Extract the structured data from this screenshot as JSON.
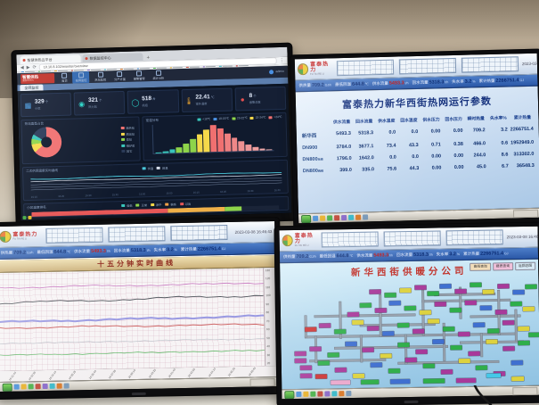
{
  "brand": {
    "logo_cn": "富泰热力",
    "logo_en": "FU TAI RE LI"
  },
  "scada": {
    "datetime": "2023-03-08 16:46:43",
    "status_items": [
      {
        "label": "供热量",
        "value": "709.2",
        "unit": "GJ/h",
        "color": "#0a2a72"
      },
      {
        "label": "最低回温",
        "value": "644.8",
        "unit": "℃",
        "color": "#0a2a72"
      },
      {
        "label": "供水流量",
        "value": "5493.3",
        "unit": "t/h",
        "color": "#c01818"
      },
      {
        "label": "回水流量",
        "value": "5318.3",
        "unit": "t/h",
        "color": "#0a2a72"
      },
      {
        "label": "失水率",
        "value": "3.2",
        "unit": "%",
        "color": "#0a2a72"
      },
      {
        "label": "累计热量",
        "value": "2266751.4",
        "unit": "GJ",
        "color": "#0a2a72"
      }
    ],
    "taskbar_icons": [
      "#4a90d8",
      "#e8b028",
      "#48b048",
      "#c04838",
      "#8868c8",
      "#38b8c8",
      "#d87828",
      "#7898b8"
    ]
  },
  "monitor_tr": {
    "title": "富泰热力新华西街热网运行参数",
    "table": {
      "headers": [
        "供水流量",
        "回水流量",
        "供水温度",
        "回水温度",
        "供水压力",
        "回水压力",
        "瞬时热量",
        "失水率%",
        "累计热量"
      ],
      "rows": [
        {
          "name": "新华西",
          "sub": "",
          "values": [
            "5493.3",
            "5318.3",
            "0.0",
            "0.0",
            "0.00",
            "0.00",
            "709.2",
            "3.2",
            "2266751.4"
          ]
        },
        {
          "name": "DN900",
          "sub": "",
          "values": [
            "3784.0",
            "3677.1",
            "73.4",
            "43.3",
            "0.71",
            "0.38",
            "466.0",
            "0.6",
            "1952949.0"
          ]
        },
        {
          "name": "DN800",
          "sub": "东线",
          "values": [
            "1796.0",
            "1642.0",
            "0.0",
            "0.0",
            "0.00",
            "0.00",
            "244.0",
            "8.6",
            "313302.0"
          ]
        },
        {
          "name": "DN800",
          "sub": "西线",
          "values": [
            "399.0",
            "335.0",
            "75.6",
            "44.3",
            "0.00",
            "0.00",
            "45.0",
            "6.7",
            "36548.3"
          ]
        }
      ]
    }
  },
  "monitor_bl": {
    "title": "十五分钟实时曲线",
    "y_ticks": [
      "130",
      "120",
      "110",
      "100",
      "90",
      "80",
      "70",
      "60",
      "50",
      "40",
      "30",
      "20"
    ],
    "x_ticks": [
      "16:31:40",
      "16:32:55",
      "16:34:10",
      "16:35:25",
      "16:36:40",
      "16:37:55",
      "16:39:10",
      "16:40:25",
      "16:41:40",
      "16:42:55",
      "16:44:10",
      "16:45:25",
      "16:46:40"
    ],
    "lines": [
      {
        "color": "#c878c0",
        "w": 0.8,
        "y": 15,
        "amp": 1.2,
        "trend": 0.5
      },
      {
        "color": "#50555c",
        "w": 0.9,
        "y": 31,
        "amp": 2.2,
        "trend": -3.5
      },
      {
        "color": "#9a9ae2",
        "w": 2.0,
        "y": 50,
        "amp": 1.0,
        "trend": -1.0
      },
      {
        "color": "#d06a6a",
        "w": 1.0,
        "y": 56,
        "amp": 1.4,
        "trend": 1.5
      },
      {
        "color": "#b8c0c8",
        "w": 0.6,
        "y": 72,
        "amp": 0.5,
        "trend": 0
      },
      {
        "color": "#58b860",
        "w": 0.7,
        "y": 84,
        "amp": 0.4,
        "trend": 0
      }
    ]
  },
  "monitor_br": {
    "title": "新华西街供暖分公司",
    "buttons": [
      {
        "label": "曲线查询",
        "bg": "#f2ddba"
      },
      {
        "label": "报表查询",
        "bg": "#f0c0da"
      },
      {
        "label": "返回总图",
        "bg": "#d6e8f4"
      }
    ],
    "palette": {
      "m": "#a8399a",
      "g": "#2fae4a",
      "y": "#ddd23e",
      "b": "#3f6fd0",
      "c": "#45c8e8",
      "r": "#cc3333",
      "p": "#eba8cc",
      "w": "#ececec"
    },
    "pipes_h": [
      [
        12,
        33,
        40
      ],
      [
        55,
        20,
        35
      ],
      [
        8,
        52,
        84
      ],
      [
        20,
        63,
        45
      ],
      [
        70,
        60,
        25
      ],
      [
        10,
        75,
        30
      ],
      [
        45,
        78,
        40
      ],
      [
        60,
        14,
        24
      ],
      [
        30,
        42,
        30
      ],
      [
        74,
        35,
        20
      ]
    ],
    "pipes_v": [
      [
        22,
        20,
        35
      ],
      [
        38,
        14,
        40
      ],
      [
        55,
        8,
        45
      ],
      [
        70,
        8,
        30
      ],
      [
        85,
        12,
        42
      ],
      [
        30,
        52,
        25
      ],
      [
        48,
        52,
        28
      ],
      [
        63,
        42,
        35
      ],
      [
        78,
        52,
        22
      ],
      [
        92,
        30,
        30
      ],
      [
        12,
        52,
        25
      ],
      [
        8,
        33,
        20
      ]
    ],
    "chips": [
      [
        52,
        6,
        "m"
      ],
      [
        57,
        12,
        "g"
      ],
      [
        62,
        5,
        "b"
      ],
      [
        68,
        10,
        "m"
      ],
      [
        74,
        4,
        "g"
      ],
      [
        79,
        11,
        "y"
      ],
      [
        85,
        6,
        "m"
      ],
      [
        91,
        12,
        "b"
      ],
      [
        96,
        7,
        "g"
      ],
      [
        34,
        9,
        "m"
      ],
      [
        40,
        13,
        "g"
      ],
      [
        46,
        8,
        "y"
      ],
      [
        30,
        22,
        "g"
      ],
      [
        36,
        27,
        "m"
      ],
      [
        42,
        20,
        "b"
      ],
      [
        48,
        25,
        "g"
      ],
      [
        54,
        29,
        "y"
      ],
      [
        60,
        22,
        "m"
      ],
      [
        66,
        28,
        "g"
      ],
      [
        72,
        21,
        "m"
      ],
      [
        78,
        26,
        "b"
      ],
      [
        84,
        30,
        "m"
      ],
      [
        90,
        23,
        "g"
      ],
      [
        95,
        28,
        "y"
      ],
      [
        25,
        30,
        "m"
      ],
      [
        8,
        44,
        "r"
      ],
      [
        14,
        40,
        "m"
      ],
      [
        20,
        46,
        "g"
      ],
      [
        27,
        38,
        "y"
      ],
      [
        33,
        44,
        "m"
      ],
      [
        39,
        49,
        "b"
      ],
      [
        45,
        41,
        "g"
      ],
      [
        51,
        47,
        "m"
      ],
      [
        57,
        38,
        "y"
      ],
      [
        63,
        45,
        "g"
      ],
      [
        69,
        50,
        "m"
      ],
      [
        75,
        42,
        "b"
      ],
      [
        81,
        48,
        "g"
      ],
      [
        87,
        40,
        "m"
      ],
      [
        93,
        46,
        "y"
      ],
      [
        97,
        52,
        "g"
      ],
      [
        10,
        62,
        "m"
      ],
      [
        17,
        68,
        "g"
      ],
      [
        24,
        58,
        "b"
      ],
      [
        31,
        64,
        "m"
      ],
      [
        38,
        70,
        "y"
      ],
      [
        45,
        60,
        "g"
      ],
      [
        52,
        66,
        "m"
      ],
      [
        59,
        57,
        "b"
      ],
      [
        66,
        63,
        "g"
      ],
      [
        73,
        69,
        "m"
      ],
      [
        80,
        58,
        "y"
      ],
      [
        87,
        65,
        "m"
      ],
      [
        93,
        60,
        "g"
      ],
      [
        4,
        66,
        "m"
      ],
      [
        4,
        73,
        "m"
      ],
      [
        6,
        80,
        "m"
      ],
      [
        6,
        87,
        "m"
      ],
      [
        12,
        88,
        "r"
      ],
      [
        13,
        76,
        "g"
      ],
      [
        20,
        82,
        "m"
      ],
      [
        27,
        88,
        "y"
      ],
      [
        34,
        78,
        "b"
      ],
      [
        41,
        84,
        "g"
      ],
      [
        48,
        74,
        "m"
      ],
      [
        55,
        80,
        "g"
      ],
      [
        62,
        86,
        "m"
      ],
      [
        69,
        76,
        "y"
      ],
      [
        76,
        82,
        "g"
      ],
      [
        83,
        88,
        "m"
      ],
      [
        90,
        78,
        "b"
      ],
      [
        18,
        94,
        "p",
        22
      ],
      [
        30,
        94,
        "g",
        20
      ],
      [
        42,
        94,
        "b",
        22
      ],
      [
        55,
        94,
        "g",
        24
      ],
      [
        68,
        94,
        "m",
        22
      ],
      [
        80,
        90,
        "c",
        16
      ],
      [
        90,
        93,
        "y",
        14
      ]
    ]
  },
  "monitor_tl": {
    "browser": {
      "tabs": [
        {
          "label": "智慧供热云平台",
          "active": true
        },
        {
          "label": "数据监控中心",
          "active": false
        }
      ],
      "url": "10.10.8.102/monitor/overview",
      "bookmarks": [
        "#4a90d8",
        "#48b048",
        "#e8b028",
        "#c04838",
        "#8868c8",
        "#38b8c8",
        "#d87828",
        "#4a90d8",
        "#48b048",
        "#e8b028",
        "#c04838",
        "#8868c8",
        "#38b8c8",
        "#c02020"
      ]
    },
    "app": {
      "logo_line1": "智慧供热",
      "logo_line2": "监控云平台",
      "nav": [
        "首页",
        "全网监控",
        "热站监控",
        "分户计量",
        "报警管理",
        "统计分析"
      ],
      "active_nav": 1,
      "user": "admin"
    },
    "subtab": "全网监控",
    "kpis": [
      {
        "icon": "building",
        "color": "#4aa0e8",
        "value": "329",
        "unit": "个",
        "label": "小区"
      },
      {
        "icon": "pin",
        "color": "#2ad4c8",
        "value": "321",
        "unit": "个",
        "label": "热力站"
      },
      {
        "icon": "ring",
        "color": "#2ad4c8",
        "value": "518",
        "unit": "台",
        "label": "机组"
      },
      {
        "icon": "thermo",
        "color": "#f0a830",
        "value": "22.41",
        "unit": "℃",
        "label": "室外温度"
      },
      {
        "icon": "alarm",
        "color": "#e85050",
        "value": "8",
        "unit": "个",
        "label": "报警总数"
      }
    ],
    "donut": {
      "title": "热站类型占比",
      "slices": [
        {
          "label": "换热站",
          "pct": 64,
          "color": "#f07070"
        },
        {
          "label": "隔压站",
          "pct": 9,
          "color": "#f5d94a"
        },
        {
          "label": "泵站",
          "pct": 6,
          "color": "#8ed44a"
        },
        {
          "label": "锅炉房",
          "pct": 5,
          "color": "#39c5bb"
        },
        {
          "label": "其它",
          "pct": 16,
          "color": "#2a3a58"
        }
      ]
    },
    "hist": {
      "title": "室温分布",
      "legend": [
        {
          "label": "<18℃",
          "color": "#39c5bb"
        },
        {
          "label": "18-20℃",
          "color": "#4a90e2"
        },
        {
          "label": "20-22℃",
          "color": "#8ed44a"
        },
        {
          "label": "22-24℃",
          "color": "#f5d94a"
        },
        {
          "label": ">24℃",
          "color": "#f07070"
        }
      ],
      "bars": [
        {
          "h": 4,
          "c": "#39c5bb"
        },
        {
          "h": 7,
          "c": "#39c5bb"
        },
        {
          "h": 12,
          "c": "#39c5bb"
        },
        {
          "h": 20,
          "c": "#8ed44a"
        },
        {
          "h": 32,
          "c": "#8ed44a"
        },
        {
          "h": 46,
          "c": "#8ed44a"
        },
        {
          "h": 62,
          "c": "#f5d94a"
        },
        {
          "h": 78,
          "c": "#f5d94a"
        },
        {
          "h": 95,
          "c": "#f07070"
        },
        {
          "h": 82,
          "c": "#f07070"
        },
        {
          "h": 64,
          "c": "#f08080"
        },
        {
          "h": 48,
          "c": "#f08888"
        },
        {
          "h": 34,
          "c": "#f09090"
        },
        {
          "h": 22,
          "c": "#f09898"
        },
        {
          "h": 13,
          "c": "#f0a0a0"
        },
        {
          "h": 7,
          "c": "#f0a8a8"
        },
        {
          "h": 4,
          "c": "#f0b0b0"
        }
      ]
    },
    "trend": {
      "title": "二次供回温度实时曲线",
      "legend": [
        {
          "label": "供温",
          "color": "#49c5d8"
        },
        {
          "label": "回温",
          "color": "#d8e0ec"
        }
      ],
      "lines": [
        {
          "color": "#49c5d8",
          "w": 0.9,
          "y": 26,
          "amp": 5,
          "trend": 0
        },
        {
          "color": "#d8e0ec",
          "w": 0.7,
          "y": 38,
          "amp": 2,
          "trend": 0
        },
        {
          "color": "#70809c",
          "w": 0.5,
          "y": 54,
          "amp": 0.8,
          "trend": 0
        },
        {
          "color": "#70809c",
          "w": 0.5,
          "y": 66,
          "amp": 0.8,
          "trend": 0
        },
        {
          "color": "#70809c",
          "w": 0.5,
          "y": 78,
          "amp": 0.8,
          "trend": 0
        }
      ],
      "x_ticks": [
        "15:10",
        "15:20",
        "15:30",
        "15:40",
        "15:50",
        "16:00",
        "16:10",
        "16:20",
        "16:30",
        "16:40"
      ]
    },
    "rank": {
      "title": "小区温度排名",
      "legend": [
        {
          "label": "偏低",
          "color": "#39c5bb"
        },
        {
          "label": "正常",
          "color": "#8ed44a"
        },
        {
          "label": "适中",
          "color": "#f5d94a"
        },
        {
          "label": "偏高",
          "color": "#f0a048"
        },
        {
          "label": "过高",
          "color": "#e85858"
        }
      ],
      "segments": [
        {
          "w": 55,
          "c": "#e85858"
        },
        {
          "w": 23,
          "c": "#f0b048"
        },
        {
          "w": 7,
          "c": "#8ed44a"
        },
        {
          "w": 15,
          "c": "#1a2438"
        }
      ]
    },
    "desktop_icons": [
      "#48b048",
      "#e8c028"
    ]
  }
}
